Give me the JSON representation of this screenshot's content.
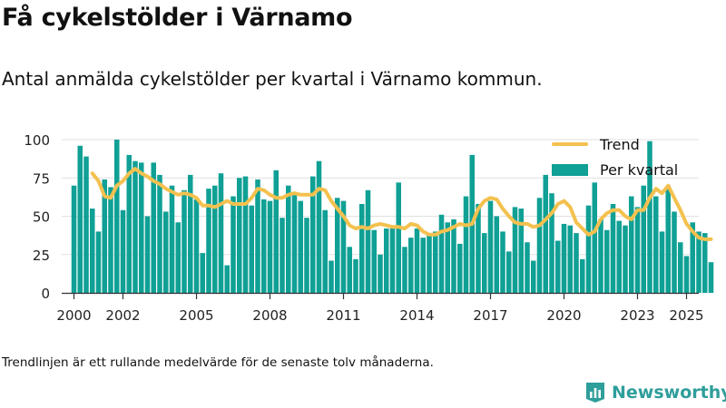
{
  "title": "Få cykelstölder i Värnamo",
  "subtitle": "Antal anmälda cykelstölder per kvartal i Värnamo kommun.",
  "footnote": "Trendlinjen är ett rullande medelvärde för de senaste tolv månaderna.",
  "brand": {
    "name": "Newsworthy",
    "logo_icon": "newsworthy-bar-logo-icon"
  },
  "colors": {
    "bars": "#10a095",
    "trend": "#f4c14f",
    "axis": "#333333",
    "grid": "#e0e0e0"
  },
  "chart_data": {
    "type": "bar",
    "title": "Få cykelstölder i Värnamo",
    "xlabel": "",
    "ylabel": "",
    "x_start": 2000,
    "x_step": 0.25,
    "xlim": [
      1999.5,
      2025.5
    ],
    "ylim": [
      0,
      100
    ],
    "x_ticks": [
      2000,
      2002,
      2005,
      2008,
      2011,
      2014,
      2017,
      2020,
      2023,
      2025
    ],
    "x_tick_labels": [
      "2000",
      "2002",
      "2005",
      "2008",
      "2011",
      "2014",
      "2017",
      "2020",
      "2023",
      "2025"
    ],
    "y_ticks": [
      0,
      25,
      50,
      75,
      100
    ],
    "y_tick_labels": [
      "0",
      "25",
      "50",
      "75",
      "100"
    ],
    "grid": "horizontal",
    "legend_position": "top-right",
    "series": [
      {
        "name": "Per kvartal",
        "type": "bar",
        "values": [
          70,
          96,
          89,
          55,
          40,
          74,
          69,
          100,
          54,
          90,
          86,
          85,
          50,
          85,
          77,
          53,
          70,
          46,
          67,
          77,
          61,
          26,
          68,
          70,
          78,
          18,
          63,
          75,
          76,
          57,
          74,
          61,
          60,
          80,
          49,
          70,
          64,
          60,
          49,
          76,
          86,
          54,
          21,
          62,
          60,
          30,
          22,
          58,
          67,
          41,
          25,
          42,
          42,
          72,
          30,
          36,
          42,
          36,
          38,
          40,
          51,
          46,
          48,
          32,
          63,
          90,
          58,
          39,
          60,
          50,
          40,
          27,
          56,
          55,
          33,
          21,
          62,
          77,
          65,
          34,
          45,
          44,
          39,
          22,
          57,
          72,
          48,
          41,
          58,
          47,
          44,
          63,
          56,
          70,
          99,
          63,
          40,
          70,
          53,
          33,
          24,
          46,
          40,
          39,
          20
        ]
      },
      {
        "name": "Trend",
        "type": "line",
        "values": [
          null,
          null,
          null,
          78,
          73,
          63,
          62,
          70,
          73,
          78,
          81,
          78,
          76,
          73,
          71,
          68,
          66,
          64,
          65,
          64,
          62,
          57,
          57,
          56,
          58,
          60,
          58,
          58,
          58,
          62,
          68,
          67,
          64,
          62,
          62,
          64,
          65,
          64,
          64,
          64,
          68,
          67,
          60,
          55,
          50,
          44,
          42,
          43,
          42,
          44,
          45,
          44,
          43,
          43,
          42,
          45,
          44,
          40,
          38,
          38,
          40,
          41,
          43,
          45,
          44,
          45,
          55,
          60,
          62,
          61,
          55,
          50,
          46,
          45,
          45,
          43,
          44,
          48,
          52,
          58,
          60,
          56,
          46,
          42,
          38,
          40,
          48,
          52,
          54,
          54,
          50,
          48,
          54,
          54,
          62,
          68,
          65,
          70,
          62,
          54,
          45,
          40,
          36,
          35,
          35
        ]
      }
    ]
  }
}
